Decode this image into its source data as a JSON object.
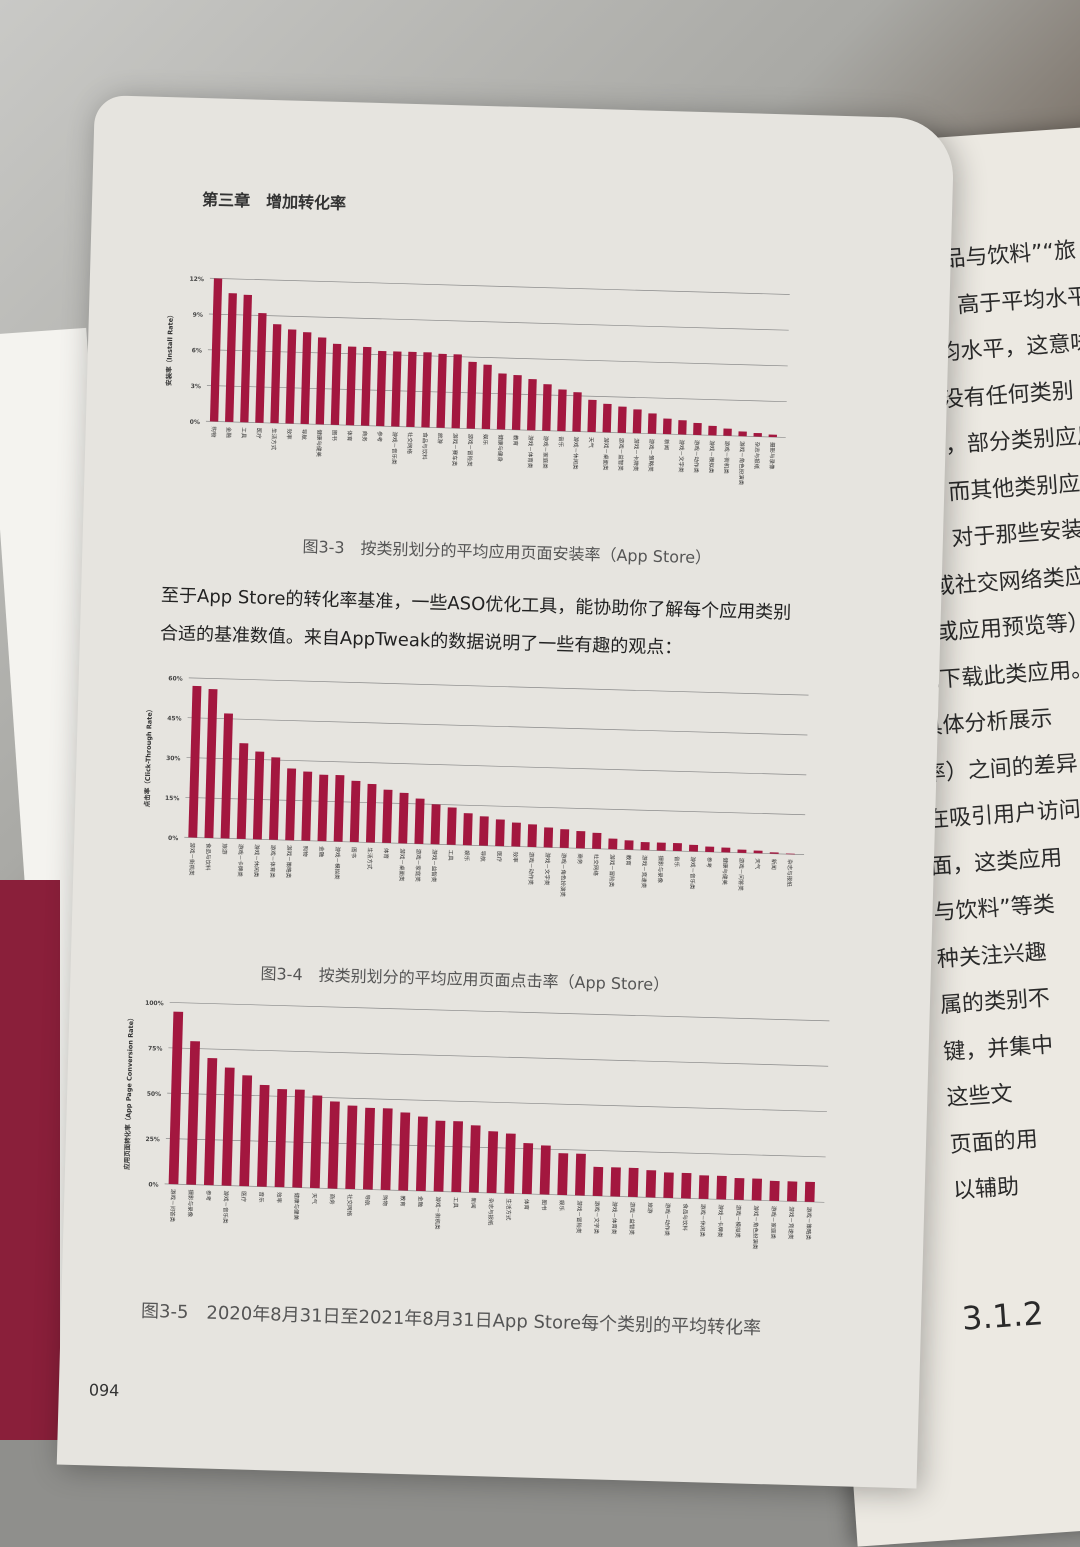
{
  "header": {
    "chapter": "第三章　增加转化率",
    "page_number": "094"
  },
  "paragraph": "至于App Store的转化率基准，一些ASO优化工具，能协助你了解每个应用类别合适的基准数值。来自AppTweak的数据说明了一些有趣的观点：",
  "right_page": {
    "lines": [
      "像“食品与饮料”“旅",
      "装率）高于平均水平；然",
      "于平均水平，这意味着这",
      "尽管没有任何类别",
      "表明，部分类别应用的",
      "策；而其他类别应用的",
      "载。对于那些安装率",
      "类或社交网络类应用",
      "题或应用预览等）",
      "就下载此类应用。",
      "具体分析展示",
      "率）之间的差异",
      "在吸引用户访问",
      "面，这类应用",
      "与饮料”等类",
      "种关注兴趣",
      "属的类别不",
      "键，并集中",
      "这些文",
      "页面的用",
      "以辅助"
    ],
    "section": "3.1.2"
  },
  "colors": {
    "bar": "#a3173f",
    "page": "#e6e4df",
    "grid": "#8a8a8a"
  },
  "chart_data": [
    {
      "type": "bar",
      "caption": "图3-3　按类别划分的平均应用页面安装率（App Store）",
      "ylabel": "安装率（Install Rate）",
      "ylim": [
        0,
        12
      ],
      "yticks": [
        "0%",
        "3%",
        "6%",
        "9%",
        "12%"
      ],
      "grid": true,
      "categories": [
        "购物",
        "金融",
        "工具",
        "医疗",
        "生活方式",
        "效率",
        "导航",
        "健康与健美",
        "图书",
        "体育",
        "商务",
        "参考",
        "游戏－音乐类",
        "社交网络",
        "食品与饮料",
        "旅游",
        "游戏－赛车类",
        "游戏－冒险类",
        "娱乐",
        "健康与健身",
        "教育",
        "游戏－体育类",
        "游戏－家庭类",
        "音乐",
        "游戏－休闲类",
        "天气",
        "游戏－桌面类",
        "游戏－益智类",
        "游戏－卡牌类",
        "游戏－策略类",
        "新闻",
        "游戏－文字类",
        "游戏－动作类",
        "游戏－模拟类",
        "游戏－街机类",
        "游戏－角色扮演类",
        "杂志与报纸",
        "摄影与录像"
      ],
      "values": [
        12,
        10.8,
        10.7,
        9.2,
        8.3,
        7.9,
        7.7,
        7.3,
        6.8,
        6.6,
        6.6,
        6.3,
        6.3,
        6.3,
        6.3,
        6.2,
        6.2,
        5.6,
        5.4,
        4.7,
        4.6,
        4.3,
        3.9,
        3.5,
        3.3,
        2.7,
        2.4,
        2.2,
        2.0,
        1.7,
        1.3,
        1.2,
        1.0,
        0.8,
        0.6,
        0.4,
        0.3,
        0.2
      ]
    },
    {
      "type": "bar",
      "caption": "图3-4　按类别划分的平均应用页面点击率（App Store）",
      "ylabel": "点击率（Click-Through Rate）",
      "ylim": [
        0,
        60
      ],
      "yticks": [
        "0%",
        "15%",
        "30%",
        "45%",
        "60%"
      ],
      "grid": true,
      "categories": [
        "游戏－街机类",
        "食品与饮料",
        "旅游",
        "游戏－卡牌类",
        "游戏－休闲类",
        "游戏－体育类",
        "游戏－策略类",
        "购物",
        "金融",
        "游戏－模拟类",
        "图书",
        "生活方式",
        "体育",
        "游戏－桌面类",
        "游戏－家庭类",
        "游戏－益智类",
        "工具",
        "娱乐",
        "导航",
        "医疗",
        "效率",
        "游戏－动作类",
        "游戏－文字类",
        "游戏－角色扮演类",
        "商务",
        "社交网络",
        "游戏－冒险类",
        "教育",
        "游戏－竞速类",
        "摄影与录像",
        "音乐",
        "游戏－音乐类",
        "参考",
        "健康与健美",
        "游戏－问答类",
        "天气",
        "新闻",
        "杂志与报纸"
      ],
      "values": [
        57,
        56,
        47,
        36,
        33,
        31,
        27,
        26,
        25,
        25,
        23,
        22,
        20,
        19,
        17,
        15,
        14,
        12,
        11,
        10,
        9,
        8.5,
        7.5,
        7,
        6.5,
        6,
        4,
        3.5,
        3,
        3,
        3,
        2.5,
        2,
        1.8,
        1.2,
        1,
        0.5,
        0.2
      ]
    },
    {
      "type": "bar",
      "caption": "图3-5　2020年8月31日至2021年8月31日App Store每个类别的平均转化率",
      "ylabel": "应用页面转化率（App Page Conversion Rate）",
      "ylim": [
        0,
        100
      ],
      "yticks": [
        "0%",
        "25%",
        "50%",
        "75%",
        "100%"
      ],
      "grid": true,
      "categories": [
        "游戏－问答类",
        "摄影与录像",
        "参考",
        "游戏－音乐类",
        "医疗",
        "音乐",
        "效率",
        "健康与健美",
        "天气",
        "商务",
        "社交网络",
        "导航",
        "购物",
        "教育",
        "金融",
        "游戏－街机类",
        "工具",
        "新闻",
        "杂志与报纸",
        "生活方式",
        "体育",
        "图书",
        "娱乐",
        "游戏－冒险类",
        "游戏－文字类",
        "游戏－体育类",
        "游戏－益智类",
        "旅游",
        "游戏－动作类",
        "食品与饮料",
        "游戏－休闲类",
        "游戏－卡牌类",
        "游戏－模拟类",
        "游戏－角色扮演类",
        "游戏－家庭类",
        "游戏－竞速类",
        "游戏－策略类"
      ],
      "values": [
        95,
        79,
        70,
        65,
        61,
        56,
        54,
        54,
        51,
        48,
        46,
        45,
        45,
        43,
        41,
        39,
        39,
        37,
        34,
        33,
        28,
        27,
        23,
        23,
        16,
        16,
        16,
        15,
        14,
        14,
        13,
        13,
        12,
        12,
        11,
        11,
        11
      ]
    }
  ]
}
